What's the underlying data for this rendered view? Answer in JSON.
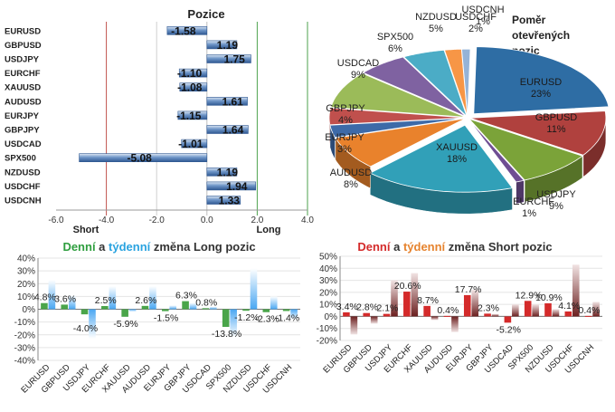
{
  "chart_data": [
    {
      "type": "bar",
      "orientation": "horizontal",
      "title": "Pozice",
      "categories": [
        "EURUSD",
        "GBPUSD",
        "USDJPY",
        "EURCHF",
        "XAUUSD",
        "AUDUSD",
        "EURJPY",
        "GBPJPY",
        "USDCAD",
        "SPX500",
        "NZDUSD",
        "USDCHF",
        "USDCNH"
      ],
      "values": [
        -1.58,
        1.19,
        1.75,
        -1.1,
        -1.08,
        1.61,
        -1.15,
        1.64,
        -1.01,
        -5.08,
        1.19,
        1.94,
        1.33
      ],
      "value_labels": [
        "-1.58",
        "1.19",
        "1.75",
        "-1.10",
        "-1.08",
        "1.61",
        "-1.15",
        "1.64",
        "-1.01",
        "-5.08",
        "1.19",
        "1.94",
        "1.33"
      ],
      "xlim": [
        -6,
        4
      ],
      "xticks": [
        "-6.0",
        "-4.0",
        "-2.0",
        "0.0",
        "2.0",
        "4.0"
      ],
      "short_label": "Short",
      "long_label": "Long",
      "short_line": -4,
      "long_line": 2,
      "short_color": "#c0504d",
      "long_color": "#4ea24e",
      "bar_color": "#4f81bd"
    },
    {
      "type": "pie",
      "title_lines": [
        "Poměr",
        "otevřených",
        "pozic"
      ],
      "slices": [
        {
          "label": "EURUSD",
          "value": 23,
          "label_text": "23%",
          "color": "#2e6da4"
        },
        {
          "label": "GBPUSD",
          "value": 11,
          "label_text": "11%",
          "color": "#b0413e"
        },
        {
          "label": "USDJPY",
          "value": 9,
          "label_text": "9%",
          "color": "#7ba339"
        },
        {
          "label": "EURCHF",
          "value": 1,
          "label_text": "1%",
          "color": "#6f4e93"
        },
        {
          "label": "XAUUSD",
          "value": 18,
          "label_text": "18%",
          "color": "#31a0b8"
        },
        {
          "label": "AUDUSD",
          "value": 8,
          "label_text": "8%",
          "color": "#e9822c"
        },
        {
          "label": "EURJPY",
          "value": 3,
          "label_text": "3%",
          "color": "#3d6aa8"
        },
        {
          "label": "GBPJPY",
          "value": 4,
          "label_text": "4%",
          "color": "#c0504d"
        },
        {
          "label": "USDCAD",
          "value": 9,
          "label_text": "9%",
          "color": "#9bbb59"
        },
        {
          "label": "SPX500",
          "value": 6,
          "label_text": "6%",
          "color": "#7f62a1"
        },
        {
          "label": "NZDUSD",
          "value": 5,
          "label_text": "5%",
          "color": "#4bacc6"
        },
        {
          "label": "USDCHF",
          "value": 2,
          "label_text": "2%",
          "color": "#f79646"
        },
        {
          "label": "USDCNH",
          "value": 1,
          "label_text": "1%",
          "color": "#95b3d7"
        }
      ]
    },
    {
      "type": "bar",
      "title_parts": [
        {
          "text": "Denní",
          "color": "#2e9e3e"
        },
        {
          "text": " a ",
          "color": "#333333"
        },
        {
          "text": "týdenní",
          "color": "#2aa3e0"
        },
        {
          "text": " změna Long pozic",
          "color": "#333333"
        }
      ],
      "categories": [
        "EURUSD",
        "GBPUSD",
        "USDJPY",
        "EURCHF",
        "XAUUSD",
        "AUDUSD",
        "EURJPY",
        "GBPJPY",
        "USDCAD",
        "SPX500",
        "NZDUSD",
        "USDCHF",
        "USDCNH"
      ],
      "series": [
        {
          "name": "Denní",
          "color": "#4aa54a",
          "values": [
            4.8,
            3.6,
            -4.0,
            2.5,
            -5.9,
            2.6,
            -1.5,
            6.3,
            0.8,
            -13.8,
            -1.2,
            -2.3,
            -1.4
          ]
        },
        {
          "name": "týdenní",
          "color": "#63b3ee",
          "values": [
            23,
            11,
            -23,
            18,
            -2,
            18,
            3,
            5,
            2,
            -22,
            32,
            10,
            -8
          ]
        }
      ],
      "data_labels": [
        "4.8%",
        "3.6%",
        "-4.0%",
        "2.5%",
        "-5.9%",
        "2.6%",
        "-1.5%",
        "6.3%",
        "0.8%",
        "-13.8%",
        "-1.2%",
        "-2.3%",
        "-1.4%"
      ],
      "ylim": [
        -40,
        40
      ],
      "yticks": [
        "40%",
        "30%",
        "20%",
        "10%",
        "0%",
        "-10%",
        "-20%",
        "-30%",
        "-40%"
      ]
    },
    {
      "type": "bar",
      "title_parts": [
        {
          "text": "Denní",
          "color": "#d42a2a"
        },
        {
          "text": " a ",
          "color": "#333333"
        },
        {
          "text": "týdenní",
          "color": "#e6832e"
        },
        {
          "text": " změna Short pozic",
          "color": "#333333"
        }
      ],
      "categories": [
        "EURUSD",
        "GBPUSD",
        "USDJPY",
        "EURCHF",
        "XAUUSD",
        "AUDUSD",
        "EURJPY",
        "GBPJPY",
        "USDCAD",
        "SPX500",
        "NZDUSD",
        "USDCHF",
        "USDCNH"
      ],
      "series": [
        {
          "name": "Denní",
          "color": "#d42a2a",
          "values": [
            3.4,
            2.8,
            2.1,
            20.6,
            8.7,
            0.4,
            17.7,
            2.3,
            -5.2,
            12.9,
            10.9,
            4.1,
            0.4
          ]
        },
        {
          "name": "týdenní",
          "color": "#7a2e2e",
          "values": [
            -15,
            -6,
            30,
            36,
            -3,
            -13,
            22,
            2,
            10,
            10,
            6,
            43,
            12
          ]
        }
      ],
      "data_labels": [
        "3.4%",
        "2.8%",
        "2.1%",
        "20.6%",
        "8.7%",
        "0.4%",
        "17.7%",
        "2.3%",
        "-5.2%",
        "12.9%",
        "10.9%",
        "4.1%",
        "0.4%"
      ],
      "ylim": [
        -20,
        50
      ],
      "yticks": [
        "50%",
        "40%",
        "30%",
        "20%",
        "10%",
        "0%",
        "-10%",
        "-20%"
      ]
    }
  ]
}
